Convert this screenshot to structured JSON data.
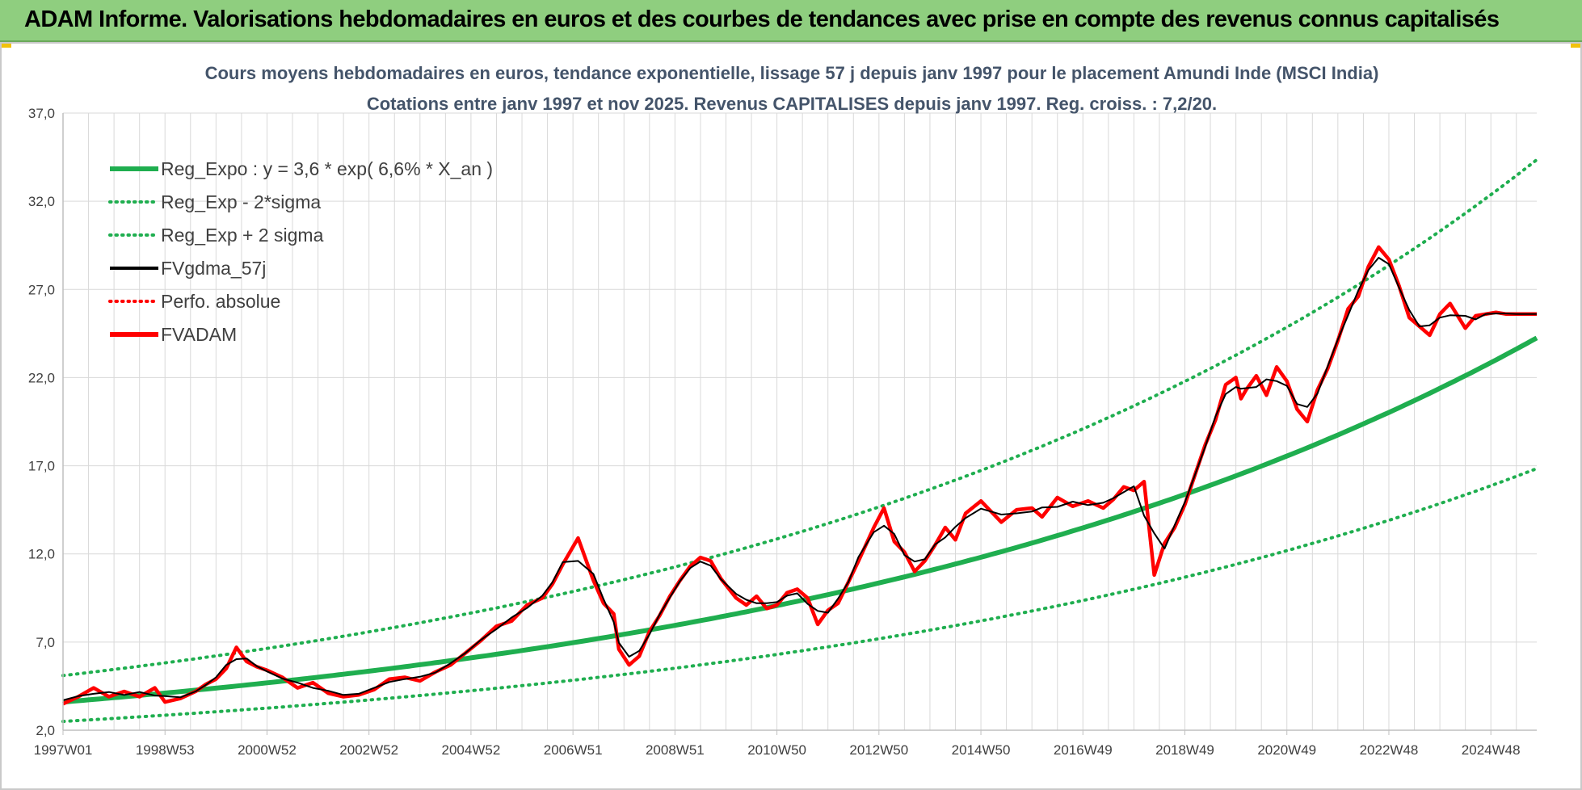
{
  "header": {
    "title": "ADAM Informe. Valorisations hebdomadaires en euros et des courbes de tendances avec prise en compte des revenus connus capitalisés"
  },
  "colors": {
    "header_bg": "#8fce7f",
    "regression": "#1fae4f",
    "smoothed": "#000000",
    "fvadam": "#ff0000",
    "grid": "#d9d9d9"
  },
  "chart_data": {
    "type": "line",
    "title": [
      "Cours moyens hebdomadaires en euros, tendance exponentielle, lissage 57 j depuis janv 1997 pour le placement Amundi Inde (MSCI India)",
      "Cotations entre janv 1997 et nov 2025. Revenus CAPITALISES depuis janv 1997. Reg. croiss. : 7,2/20."
    ],
    "xlim": [
      1997.0,
      2025.9
    ],
    "ylim": [
      2.0,
      37.0
    ],
    "y_ticks": [
      2.0,
      7.0,
      12.0,
      17.0,
      22.0,
      27.0,
      32.0,
      37.0
    ],
    "y_tick_labels": [
      "2,0",
      "7,0",
      "12,0",
      "17,0",
      "22,0",
      "27,0",
      "32,0",
      "37,0"
    ],
    "x_ticks": [
      1997.0,
      1999.0,
      2001.0,
      2003.0,
      2005.0,
      2007.0,
      2009.0,
      2011.0,
      2013.0,
      2015.0,
      2017.0,
      2019.0,
      2021.0,
      2023.0,
      2025.0
    ],
    "x_tick_labels": [
      "1997W01",
      "1998W53",
      "2000W52",
      "2002W52",
      "2004W52",
      "2006W51",
      "2008W51",
      "2010W50",
      "2012W50",
      "2014W50",
      "2016W49",
      "2018W49",
      "2020W49",
      "2022W48",
      "2024W48"
    ],
    "grid": true,
    "legend_position": "top-left",
    "series": [
      {
        "name": "Reg_Expo : y = 3,6 * exp( 6,6% *  X_an )",
        "style": "solid-thick",
        "color": "#1fae4f",
        "model": "exponential",
        "a": 3.6,
        "b": 0.066
      },
      {
        "name": "Reg_Exp - 2*sigma",
        "style": "dotted",
        "color": "#1fae4f",
        "model": "exponential",
        "a": 2.5,
        "b": 0.066
      },
      {
        "name": "Reg_Exp + 2 sigma",
        "style": "dotted",
        "color": "#1fae4f",
        "model": "exponential",
        "a": 5.1,
        "b": 0.066
      },
      {
        "name": "FVgdma_57j",
        "style": "solid",
        "color": "#000000",
        "smoothing_of": "FVADAM"
      },
      {
        "name": "Perfo. absolue",
        "style": "dotted",
        "color": "#ff0000",
        "legend_only": true
      },
      {
        "name": "FVADAM",
        "style": "solid-thick",
        "color": "#ff0000",
        "x": [
          1997.0,
          1997.3,
          1997.6,
          1997.9,
          1998.2,
          1998.5,
          1998.8,
          1999.0,
          1999.3,
          1999.6,
          1999.8,
          2000.0,
          2000.2,
          2000.4,
          2000.6,
          2000.8,
          2001.0,
          2001.3,
          2001.6,
          2001.9,
          2002.2,
          2002.5,
          2002.8,
          2003.1,
          2003.4,
          2003.7,
          2004.0,
          2004.3,
          2004.6,
          2004.9,
          2005.2,
          2005.5,
          2005.8,
          2006.1,
          2006.4,
          2006.6,
          2006.8,
          2007.1,
          2007.4,
          2007.6,
          2007.8,
          2007.9,
          2008.1,
          2008.3,
          2008.5,
          2008.7,
          2008.9,
          2009.1,
          2009.3,
          2009.5,
          2009.7,
          2009.9,
          2010.2,
          2010.4,
          2010.6,
          2010.8,
          2011.0,
          2011.2,
          2011.4,
          2011.6,
          2011.8,
          2012.0,
          2012.2,
          2012.4,
          2012.6,
          2012.9,
          2013.1,
          2013.3,
          2013.5,
          2013.7,
          2013.9,
          2014.1,
          2014.3,
          2014.5,
          2014.7,
          2015.0,
          2015.2,
          2015.4,
          2015.7,
          2016.0,
          2016.2,
          2016.5,
          2016.8,
          2017.1,
          2017.4,
          2017.6,
          2017.8,
          2018.0,
          2018.2,
          2018.4,
          2018.6,
          2018.8,
          2019.0,
          2019.2,
          2019.4,
          2019.6,
          2019.8,
          2020.0,
          2020.1,
          2020.2,
          2020.4,
          2020.6,
          2020.8,
          2021.0,
          2021.2,
          2021.4,
          2021.6,
          2021.8,
          2022.0,
          2022.2,
          2022.4,
          2022.6,
          2022.8,
          2023.0,
          2023.2,
          2023.4,
          2023.6,
          2023.8,
          2024.0,
          2024.2,
          2024.5,
          2024.7,
          2024.9,
          2025.1,
          2025.3,
          2025.5,
          2025.7,
          2025.9
        ],
        "values": [
          3.5,
          3.9,
          4.4,
          3.9,
          4.2,
          3.9,
          4.4,
          3.6,
          3.8,
          4.2,
          4.6,
          4.9,
          5.5,
          6.7,
          5.9,
          5.6,
          5.4,
          5.0,
          4.4,
          4.7,
          4.1,
          3.9,
          4.0,
          4.3,
          4.9,
          5.0,
          4.8,
          5.3,
          5.7,
          6.4,
          7.1,
          7.9,
          8.2,
          9.1,
          9.5,
          10.3,
          11.4,
          12.9,
          10.5,
          9.2,
          8.6,
          6.6,
          5.7,
          6.2,
          7.6,
          8.5,
          9.6,
          10.5,
          11.3,
          11.8,
          11.6,
          10.6,
          9.5,
          9.1,
          9.6,
          8.9,
          9.1,
          9.8,
          10.0,
          9.5,
          8.0,
          8.8,
          9.2,
          10.4,
          11.6,
          13.5,
          14.6,
          12.7,
          12.1,
          11.0,
          11.6,
          12.5,
          13.5,
          12.8,
          14.3,
          15.0,
          14.4,
          13.8,
          14.5,
          14.6,
          14.1,
          15.2,
          14.7,
          15.0,
          14.6,
          15.1,
          15.8,
          15.6,
          16.1,
          10.8,
          12.6,
          13.5,
          14.8,
          16.5,
          18.2,
          19.6,
          21.6,
          22.0,
          20.8,
          21.3,
          22.1,
          21.0,
          22.6,
          21.8,
          20.2,
          19.5,
          21.3,
          22.5,
          24.1,
          25.9,
          26.6,
          28.3,
          29.4,
          28.7,
          27.2,
          25.4,
          24.9,
          24.4,
          25.6,
          26.2,
          24.8,
          25.5,
          25.6,
          25.7,
          25.6,
          25.6,
          25.6,
          25.6
        ]
      }
    ]
  }
}
